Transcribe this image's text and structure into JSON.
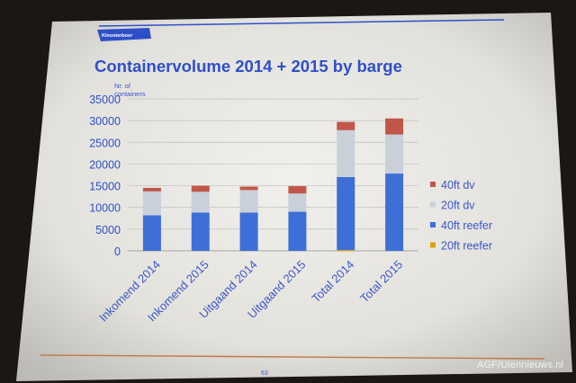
{
  "slide": {
    "logo_text": "Kloosterboer",
    "page_number": "63",
    "accent_color": "#2f4fc9",
    "rule_color": "#c07a4a"
  },
  "watermark": "AGF/Uiennieuws.nl",
  "chart_data": {
    "type": "bar",
    "stacked": true,
    "title": "Containervolume 2014 + 2015 by barge",
    "ylabel": "Nr. of containers",
    "xlabel": "",
    "ylim": [
      0,
      35000
    ],
    "yticks": [
      0,
      5000,
      10000,
      15000,
      20000,
      25000,
      30000,
      35000
    ],
    "grid": true,
    "legend_position": "right",
    "categories": [
      "Inkomend 2014",
      "Inkomend 2015",
      "Uitgaand 2014",
      "Uitgaand 2015",
      "Total 2014",
      "Total 2015"
    ],
    "series": [
      {
        "name": "20ft reefer",
        "color": "#d9a400",
        "values": [
          0,
          0,
          0,
          0,
          200,
          0
        ]
      },
      {
        "name": "40ft reefer",
        "color": "#3d6fd6",
        "values": [
          8200,
          8800,
          8800,
          9000,
          16800,
          17800
        ]
      },
      {
        "name": "20ft dv",
        "color": "#c9d0da",
        "values": [
          5500,
          4800,
          5200,
          4200,
          10800,
          9000
        ]
      },
      {
        "name": "40ft dv",
        "color": "#c0574a",
        "values": [
          800,
          1400,
          800,
          1700,
          1900,
          3700
        ]
      }
    ]
  }
}
